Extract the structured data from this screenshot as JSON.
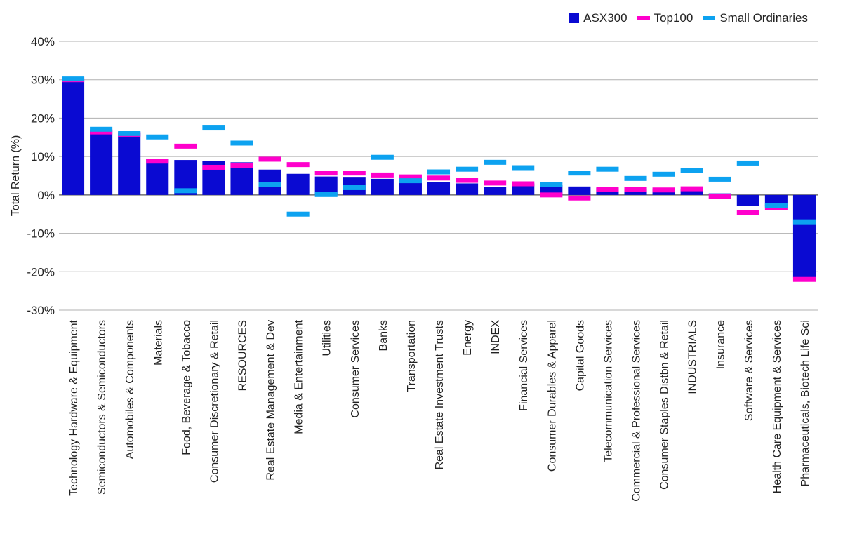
{
  "chart_data": {
    "type": "bar",
    "ylabel": "Total Return (%)",
    "ylim": [
      -30,
      40
    ],
    "yticks": [
      40,
      30,
      20,
      10,
      0,
      -10,
      -20,
      -30
    ],
    "ytick_labels": [
      "40%",
      "30%",
      "20%",
      "10%",
      "0%",
      "-10%",
      "-20%",
      "-30%"
    ],
    "grid": true,
    "legend_position": "top-right",
    "categories": [
      "Technology Hardware & Equipment",
      "Semiconductors & Semiconductors",
      "Automobiles & Components",
      "Materials",
      "Food, Beverage & Tobacco",
      "Consumer Discretionary & Retail",
      "RESOURCES",
      "Real Estate Management & Dev",
      "Media & Entertainment",
      "Utilities",
      "Consumer Services",
      "Banks",
      "Transportation",
      "Real Estate Investment Trusts",
      "Energy",
      "INDEX",
      "Financial Services",
      "Consumer Durables & Apparel",
      "Capital Goods",
      "Telecommunication Services",
      "Commercial & Professional Services",
      "Consumer Staples Distbn & Retail",
      "INDUSTRIALS",
      "Insurance",
      "Software & Services",
      "Health Care Equipment & Services",
      "Pharmaceuticals, Biotech Life Sci"
    ],
    "series": [
      {
        "name": "ASX300",
        "style": "bar",
        "color": "#0a0ad2",
        "values": [
          30.3,
          17.0,
          16.2,
          9.3,
          9.1,
          8.8,
          8.5,
          6.6,
          5.5,
          4.8,
          4.7,
          4.2,
          3.2,
          3.4,
          3.0,
          2.0,
          3.0,
          2.6,
          2.2,
          1.8,
          1.5,
          1.5,
          1.6,
          0.4,
          -2.8,
          -3.0,
          -21.5
        ]
      },
      {
        "name": "Top100",
        "style": "marker",
        "color": "#ff00cc",
        "values": [
          30.0,
          16.4,
          15.8,
          8.8,
          12.7,
          7.2,
          7.7,
          9.3,
          7.9,
          5.7,
          5.7,
          5.2,
          4.7,
          4.4,
          3.8,
          3.1,
          2.9,
          0.0,
          -0.8,
          1.5,
          1.4,
          1.3,
          1.6,
          -0.3,
          -4.6,
          -3.3,
          -22.0
        ]
      },
      {
        "name": "Small Ordinaries",
        "style": "marker",
        "color": "#0da2f0",
        "values": [
          30.2,
          17.1,
          16.0,
          15.1,
          1.1,
          17.6,
          13.5,
          2.7,
          -5.0,
          0.1,
          1.9,
          9.8,
          3.7,
          6.0,
          6.7,
          8.5,
          7.1,
          2.7,
          5.7,
          6.7,
          4.3,
          5.4,
          6.3,
          4.1,
          8.3,
          -2.7,
          -7.0
        ]
      }
    ]
  }
}
